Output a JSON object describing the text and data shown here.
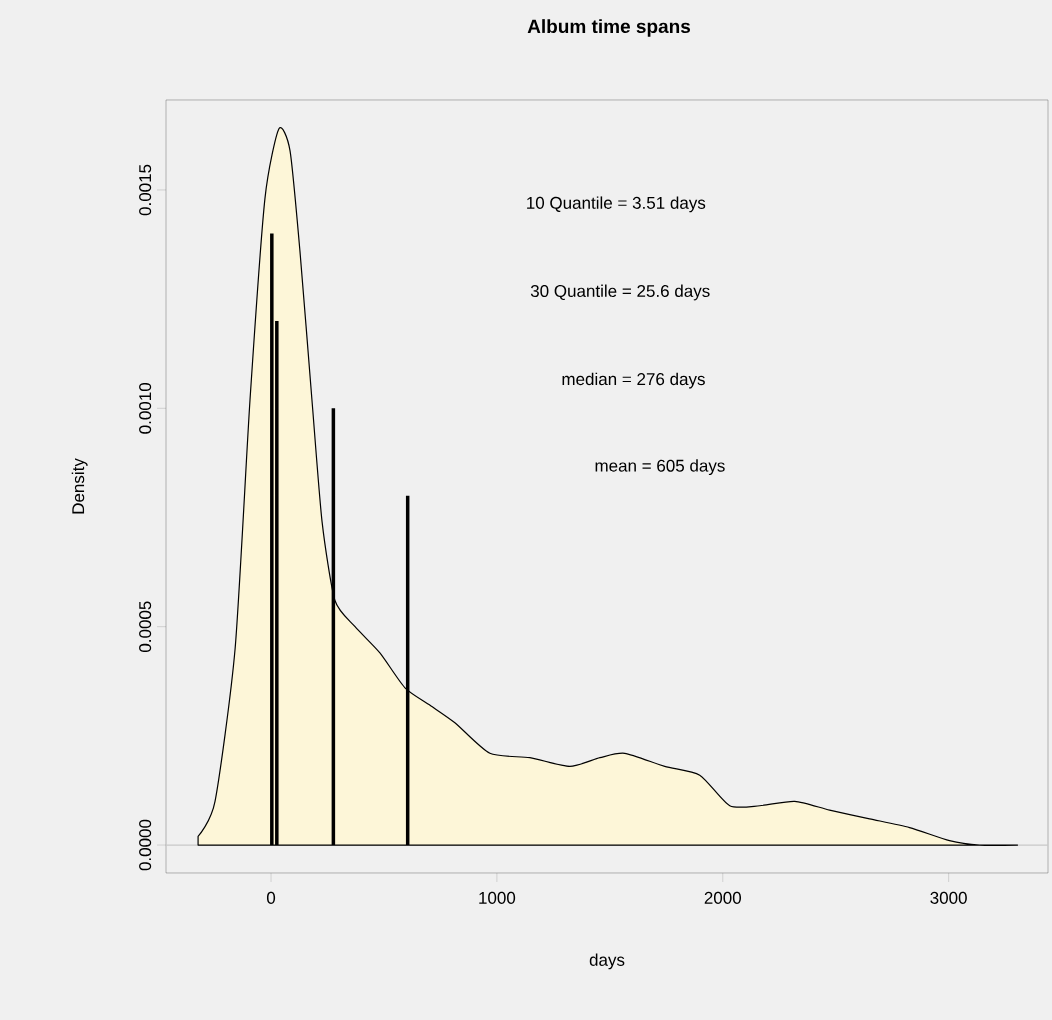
{
  "chart_data": {
    "type": "area",
    "title": "Album time spans",
    "xlabel": "days",
    "ylabel": "Density",
    "series": [
      {
        "color": "#fdf6d8",
        "x": [
          -323,
          -248,
          -159,
          -93,
          -27,
          35,
          84,
          128,
          181,
          226,
          283,
          372,
          482,
          593,
          704,
          814,
          969,
          1146,
          1323,
          1456,
          1566,
          1743,
          1898,
          2031,
          2164,
          2319,
          2473,
          2650,
          2827,
          3004,
          3137,
          3305
        ],
        "values": [
          2e-05,
          0.0001,
          0.00045,
          0.00102,
          0.00148,
          0.00164,
          0.00159,
          0.00136,
          0.00102,
          0.00074,
          0.00056,
          0.0005,
          0.00044,
          0.00036,
          0.00032,
          0.00028,
          0.00021,
          0.0002,
          0.00018,
          0.0002,
          0.00021,
          0.00018,
          0.00016,
          9e-05,
          9e-05,
          0.0001,
          8e-05,
          6e-05,
          4e-05,
          1e-05,
          0.0,
          0.0
        ]
      },
      {
        "type": "bar",
        "color": "#000000",
        "x": [
          3.51,
          25.6,
          276,
          605
        ],
        "values": [
          0.0014,
          0.0012,
          0.001,
          0.0008
        ]
      }
    ],
    "annotations": [
      "10 Quantile = 3.51 days",
      "30 Quantile = 25.6 days",
      "median = 276 days",
      "mean = 605 days"
    ],
    "ref_lines": [
      {
        "axis": "y",
        "value": 0,
        "color": "#c8c8c8"
      }
    ],
    "xlim": [
      -465,
      3440
    ],
    "ylim": [
      -6.4e-05,
      0.001706
    ],
    "xticks": [
      0,
      1000,
      2000,
      3000
    ],
    "yticks": [
      {
        "value": 0,
        "label": "0.0000"
      },
      {
        "value": 0.0005,
        "label": "0.0005"
      },
      {
        "value": 0.001,
        "label": "0.0010"
      },
      {
        "value": 0.0015,
        "label": "0.0015"
      }
    ]
  }
}
